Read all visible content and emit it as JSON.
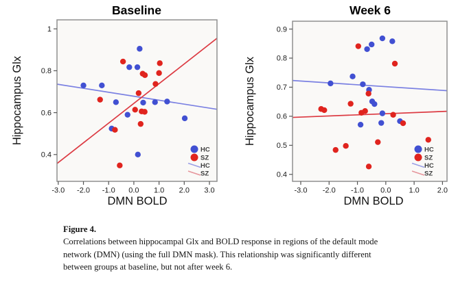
{
  "caption": {
    "label": "Figure 4.",
    "lines": [
      "Correlations between hippocampal Glx and BOLD response in regions of the default mode",
      "network (DMN) (using the full DMN mask). This relationship was significantly different",
      "between groups at baseline, but not after week 6."
    ]
  },
  "colors": {
    "hc_dot": "#4150D2",
    "sz_dot": "#E0241E",
    "hc_line": "#7A80E2",
    "sz_line": "#DC3A42",
    "hc_legend_line": "#9A9FE6",
    "sz_legend_line": "#E6959B",
    "plot_bg": "#FAF9F7",
    "plot_border": "#8F8F8F",
    "tick_text": "#1A1A1A",
    "legend_text": "#3D3D3D"
  },
  "chart_data": [
    {
      "type": "scatter",
      "title": "Baseline",
      "xlabel": "DMN BOLD",
      "ylabel": "Hippocampus Glx",
      "xlim": [
        -3.05,
        3.3
      ],
      "ylim": [
        0.272,
        1.043
      ],
      "grid": false,
      "xticks": {
        "values": [
          -3,
          -2,
          -1,
          0,
          1,
          2,
          3
        ],
        "labels": [
          "-3.0",
          "-2.0",
          "-1.0",
          "0.0",
          "1.0",
          "2.0",
          "3.0"
        ]
      },
      "yticks": {
        "values": [
          0.4,
          0.6,
          0.8,
          1.0
        ],
        "labels": [
          "0.4",
          "0.6",
          "0.8",
          "1"
        ]
      },
      "series": [
        {
          "name": "HC",
          "color": "#4150D2",
          "points": [
            [
              -2.0,
              0.73
            ],
            [
              -1.27,
              0.73
            ],
            [
              0.23,
              0.905
            ],
            [
              -0.18,
              0.817
            ],
            [
              0.14,
              0.817
            ],
            [
              -0.71,
              0.65
            ],
            [
              0.37,
              0.648
            ],
            [
              0.84,
              0.65
            ],
            [
              1.32,
              0.653
            ],
            [
              -0.25,
              0.59
            ],
            [
              2.02,
              0.573
            ],
            [
              -0.88,
              0.524
            ],
            [
              0.16,
              0.4
            ]
          ]
        },
        {
          "name": "SZ",
          "color": "#E0241E",
          "points": [
            [
              -0.43,
              0.844
            ],
            [
              1.03,
              0.836
            ],
            [
              0.35,
              0.786
            ],
            [
              0.44,
              0.779
            ],
            [
              1.0,
              0.789
            ],
            [
              0.86,
              0.737
            ],
            [
              0.19,
              0.693
            ],
            [
              -1.34,
              0.662
            ],
            [
              0.05,
              0.614
            ],
            [
              0.31,
              0.606
            ],
            [
              0.43,
              0.604
            ],
            [
              0.27,
              0.546
            ],
            [
              -0.75,
              0.518
            ],
            [
              -0.56,
              0.348
            ]
          ]
        }
      ],
      "trend_lines": [
        {
          "name": "HC",
          "color": "#7A80E2",
          "x1": -3.05,
          "y1": 0.736,
          "x2": 3.3,
          "y2": 0.616
        },
        {
          "name": "SZ",
          "color": "#DC3A42",
          "x1": -3.05,
          "y1": 0.357,
          "x2": 3.3,
          "y2": 0.955
        }
      ],
      "legend": [
        {
          "label": "HC",
          "type": "dot",
          "color": "#4150D2"
        },
        {
          "label": "SZ",
          "type": "dot",
          "color": "#E0241E"
        },
        {
          "label": "HC",
          "type": "line",
          "color": "#9A9FE6"
        },
        {
          "label": "SZ",
          "type": "line",
          "color": "#E6959B"
        }
      ],
      "legend_position": "bottom-right"
    },
    {
      "type": "scatter",
      "title": "Week 6",
      "xlabel": "DMN BOLD",
      "ylabel": "Hippocampus Glx",
      "xlim": [
        -3.29,
        2.16
      ],
      "ylim": [
        0.376,
        0.927
      ],
      "grid": false,
      "xticks": {
        "values": [
          -3,
          -2,
          -1,
          0,
          1,
          2
        ],
        "labels": [
          "-3.0",
          "-2.0",
          "-1.0",
          "0.0",
          "1.0",
          "2.0"
        ]
      },
      "yticks": {
        "values": [
          0.4,
          0.5,
          0.6,
          0.7,
          0.8,
          0.9
        ],
        "labels": [
          "0.4",
          "0.5",
          "0.6",
          "0.7",
          "0.8",
          "0.9"
        ]
      },
      "series": [
        {
          "name": "HC",
          "color": "#4150D2",
          "points": [
            [
              -1.95,
              0.713
            ],
            [
              -1.17,
              0.737
            ],
            [
              -0.81,
              0.71
            ],
            [
              -0.66,
              0.831
            ],
            [
              -0.5,
              0.847
            ],
            [
              -0.12,
              0.868
            ],
            [
              0.23,
              0.858
            ],
            [
              -0.59,
              0.691
            ],
            [
              -0.48,
              0.651
            ],
            [
              -0.4,
              0.642
            ],
            [
              -0.89,
              0.571
            ],
            [
              -0.12,
              0.61
            ],
            [
              -0.16,
              0.577
            ],
            [
              0.5,
              0.583
            ]
          ]
        },
        {
          "name": "SZ",
          "color": "#E0241E",
          "points": [
            [
              -0.97,
              0.841
            ],
            [
              0.32,
              0.781
            ],
            [
              -2.28,
              0.625
            ],
            [
              -2.17,
              0.621
            ],
            [
              -1.24,
              0.643
            ],
            [
              -0.61,
              0.678
            ],
            [
              -0.86,
              0.612
            ],
            [
              -0.73,
              0.618
            ],
            [
              0.26,
              0.605
            ],
            [
              0.61,
              0.576
            ],
            [
              -1.77,
              0.484
            ],
            [
              -1.41,
              0.498
            ],
            [
              -0.28,
              0.511
            ],
            [
              -0.6,
              0.427
            ],
            [
              1.5,
              0.519
            ]
          ]
        }
      ],
      "trend_lines": [
        {
          "name": "HC",
          "color": "#7A80E2",
          "x1": -3.29,
          "y1": 0.723,
          "x2": 2.16,
          "y2": 0.688
        },
        {
          "name": "SZ",
          "color": "#DC3A42",
          "x1": -3.29,
          "y1": 0.596,
          "x2": 2.16,
          "y2": 0.617
        }
      ],
      "legend": [
        {
          "label": "HC",
          "type": "dot",
          "color": "#4150D2"
        },
        {
          "label": "SZ",
          "type": "dot",
          "color": "#E0241E"
        },
        {
          "label": "HC",
          "type": "line",
          "color": "#9A9FE6"
        },
        {
          "label": "SZ",
          "type": "line",
          "color": "#E6959B"
        }
      ],
      "legend_position": "bottom-right"
    }
  ]
}
